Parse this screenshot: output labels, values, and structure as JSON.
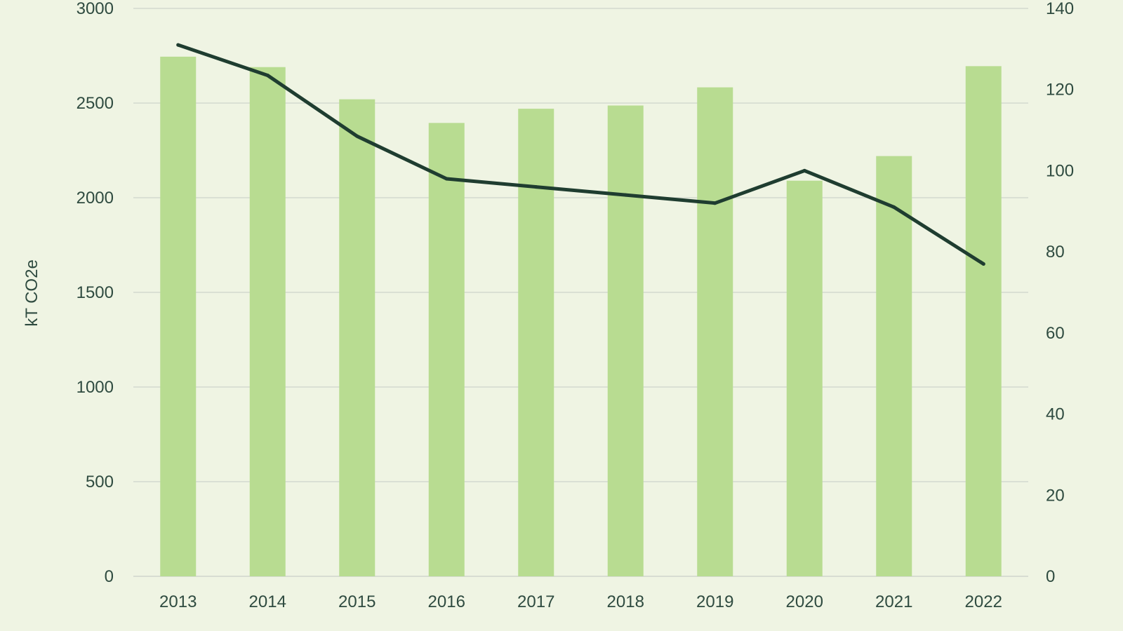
{
  "chart_data": {
    "type": "bar",
    "title": "",
    "xlabel": "",
    "ylabel": "kT CO2e",
    "y2label": "",
    "categories": [
      "2013",
      "2014",
      "2015",
      "2016",
      "2017",
      "2018",
      "2019",
      "2020",
      "2021",
      "2022"
    ],
    "series": [
      {
        "type": "bar",
        "axis": "left",
        "color": "#b8dc91",
        "values": [
          2745,
          2690,
          2520,
          2395,
          2470,
          2487,
          2583,
          2090,
          2220,
          2695
        ]
      },
      {
        "type": "line",
        "axis": "right",
        "color": "#1f3d30",
        "values": [
          131,
          123.5,
          108.5,
          98,
          96,
          94,
          92,
          100,
          91,
          77
        ]
      }
    ],
    "ylim": [
      0,
      3000
    ],
    "y2lim": [
      0,
      140
    ],
    "yticks": [
      "0",
      "500",
      "1000",
      "1500",
      "2000",
      "2500",
      "3000"
    ],
    "y2ticks": [
      "0",
      "20",
      "40",
      "60",
      "80",
      "100",
      "120",
      "140"
    ],
    "grid": true,
    "legend": "none"
  }
}
